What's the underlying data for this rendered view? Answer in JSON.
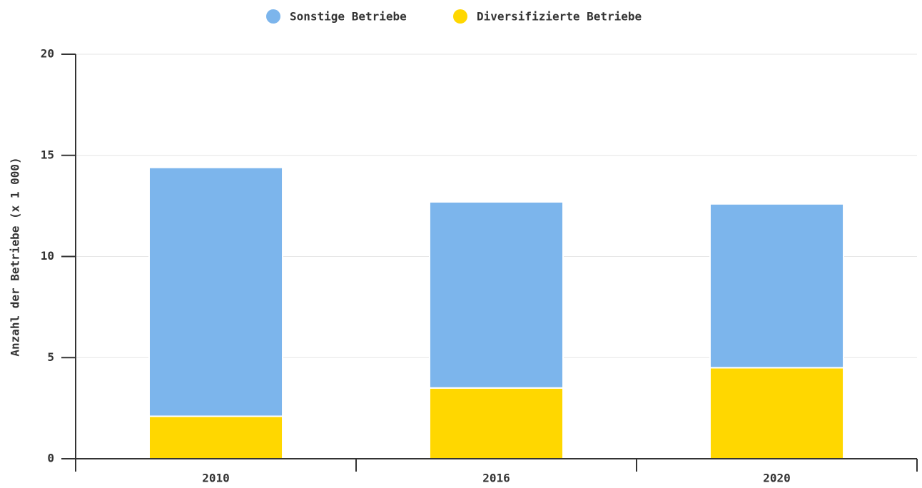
{
  "chart_data": {
    "type": "stacked_bar",
    "categories": [
      "2010",
      "2016",
      "2020"
    ],
    "series": [
      {
        "name": "Sonstige Betriebe",
        "color": "#7cb5ec",
        "values": [
          12.3,
          9.2,
          8.1
        ]
      },
      {
        "name": "Diversifizierte Betriebe",
        "color": "#ffd700",
        "values": [
          2.1,
          3.5,
          4.5
        ]
      }
    ],
    "y_label": "Anzahl der Betriebe (x 1 000)",
    "ylim": [
      0,
      20
    ],
    "yticks": [
      0,
      5,
      10,
      15,
      20
    ],
    "grid": true,
    "legend": "top"
  }
}
